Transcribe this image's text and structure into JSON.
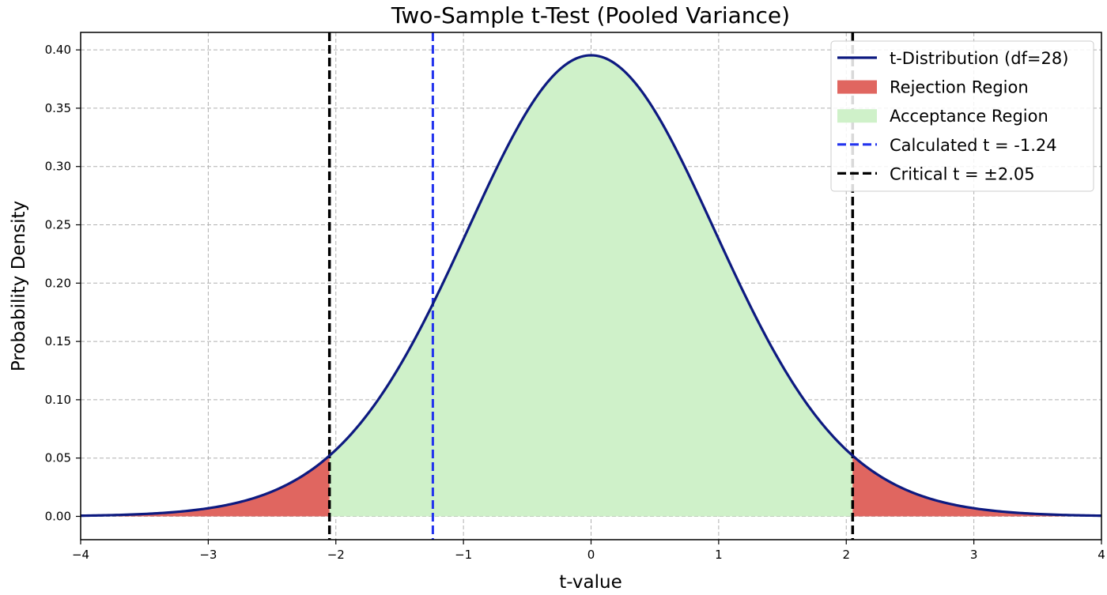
{
  "chart_data": {
    "type": "area",
    "title": "Two-Sample t-Test (Pooled Variance)",
    "xlabel": "t-value",
    "ylabel": "Probability Density",
    "xlim": [
      -4,
      4
    ],
    "ylim": [
      -0.02,
      0.415
    ],
    "x_ticks": [
      -4,
      -3,
      -2,
      -1,
      0,
      1,
      2,
      3,
      4
    ],
    "x_tick_labels": [
      "−4",
      "−3",
      "−2",
      "−1",
      "0",
      "1",
      "2",
      "3",
      "4"
    ],
    "y_ticks": [
      0.0,
      0.05,
      0.1,
      0.15,
      0.2,
      0.25,
      0.3,
      0.35,
      0.4
    ],
    "y_tick_labels": [
      "0.00",
      "0.05",
      "0.10",
      "0.15",
      "0.20",
      "0.25",
      "0.30",
      "0.35",
      "0.40"
    ],
    "grid": true,
    "legend_position": "top-right",
    "distribution": {
      "name": "t-Distribution (df=28)",
      "df": 28,
      "color": "#0d1a80"
    },
    "rejection_region": {
      "name": "Rejection Region",
      "color": "#e06660",
      "critical_t": 2.05
    },
    "acceptance_region": {
      "name": "Acceptance Region",
      "color": "#cff1c9"
    },
    "calculated_line": {
      "name": "Calculated t = -1.24",
      "value": -1.24,
      "color": "#2233ee"
    },
    "critical_line": {
      "name": "Critical t = ±2.05",
      "value": 2.05,
      "color": "#000000"
    },
    "legend": [
      {
        "label": "t-Distribution (df=28)",
        "kind": "line",
        "color": "#0d1a80"
      },
      {
        "label": "Rejection Region",
        "kind": "patch",
        "color": "#e06660"
      },
      {
        "label": "Acceptance Region",
        "kind": "patch",
        "color": "#cff1c9"
      },
      {
        "label": "Calculated t = -1.24",
        "kind": "dashed",
        "color": "#2233ee"
      },
      {
        "label": "Critical t = ±2.05",
        "kind": "dashed",
        "color": "#000000"
      }
    ]
  }
}
